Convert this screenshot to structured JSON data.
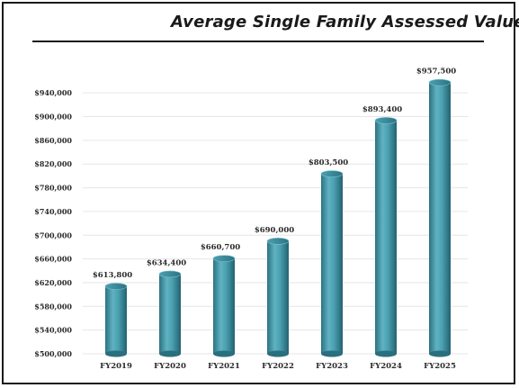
{
  "chart_data": {
    "type": "bar",
    "title": "Average Single Family Assessed Value",
    "categories": [
      "FY2019",
      "FY2020",
      "FY2021",
      "FY2022",
      "FY2023",
      "FY2024",
      "FY2025"
    ],
    "values": [
      613800,
      634400,
      660700,
      690000,
      803500,
      893400,
      957500
    ],
    "value_labels": [
      "$613,800",
      "$634,400",
      "$660,700",
      "$690,000",
      "$803,500",
      "$893,400",
      "$957,500"
    ],
    "yticks": [
      500000,
      540000,
      580000,
      620000,
      660000,
      700000,
      740000,
      780000,
      820000,
      860000,
      900000,
      940000
    ],
    "ytick_labels": [
      "$500,000",
      "$540,000",
      "$580,000",
      "$620,000",
      "$660,000",
      "$700,000",
      "$740,000",
      "$780,000",
      "$820,000",
      "$860,000",
      "$900,000",
      "$940,000"
    ],
    "ylim": [
      500000,
      960000
    ],
    "xlabel": "",
    "ylabel": "",
    "grid": true,
    "colors": {
      "bar": "#3f97a8",
      "bar_dark": "#2a6f7d",
      "bar_light": "#8ccad6",
      "text": "#2a2a2a"
    }
  }
}
